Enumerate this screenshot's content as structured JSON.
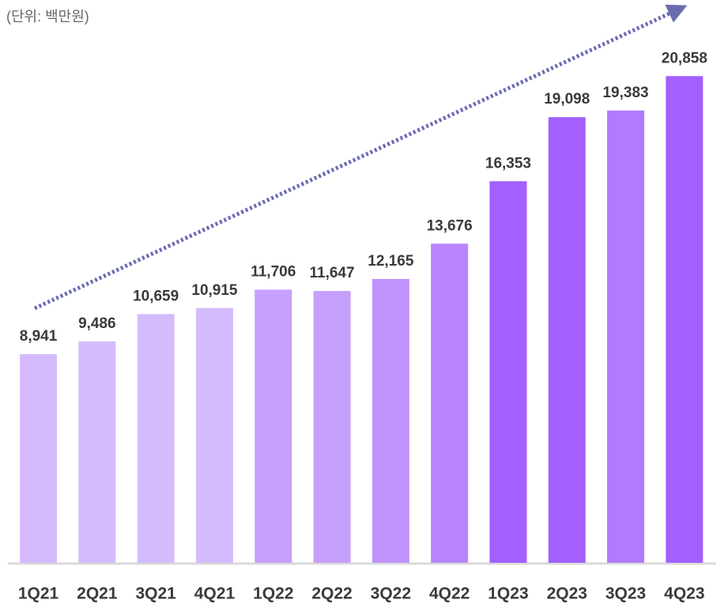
{
  "chart_data": {
    "type": "bar",
    "subtitle": "(단위: 백만원)",
    "categories": [
      "1Q21",
      "2Q21",
      "3Q21",
      "4Q21",
      "1Q22",
      "2Q22",
      "3Q22",
      "4Q22",
      "1Q23",
      "2Q23",
      "3Q23",
      "4Q23"
    ],
    "values": [
      8941,
      9486,
      10659,
      10915,
      11706,
      11647,
      12165,
      13676,
      16353,
      19098,
      19383,
      20858
    ],
    "value_labels": [
      "8,941",
      "9,486",
      "10,659",
      "10,915",
      "11,706",
      "11,647",
      "12,165",
      "13,676",
      "16,353",
      "19,098",
      "19,383",
      "20,858"
    ],
    "colors": [
      "#d5bbfd",
      "#d5bbfd",
      "#d5bbfd",
      "#d5bbfd",
      "#c6a0fc",
      "#c59ffc",
      "#bf93fb",
      "#b784fb",
      "#a45ffe",
      "#a45ffe",
      "#b07bfc",
      "#a45ffe"
    ],
    "ylim": [
      0,
      24000
    ]
  }
}
